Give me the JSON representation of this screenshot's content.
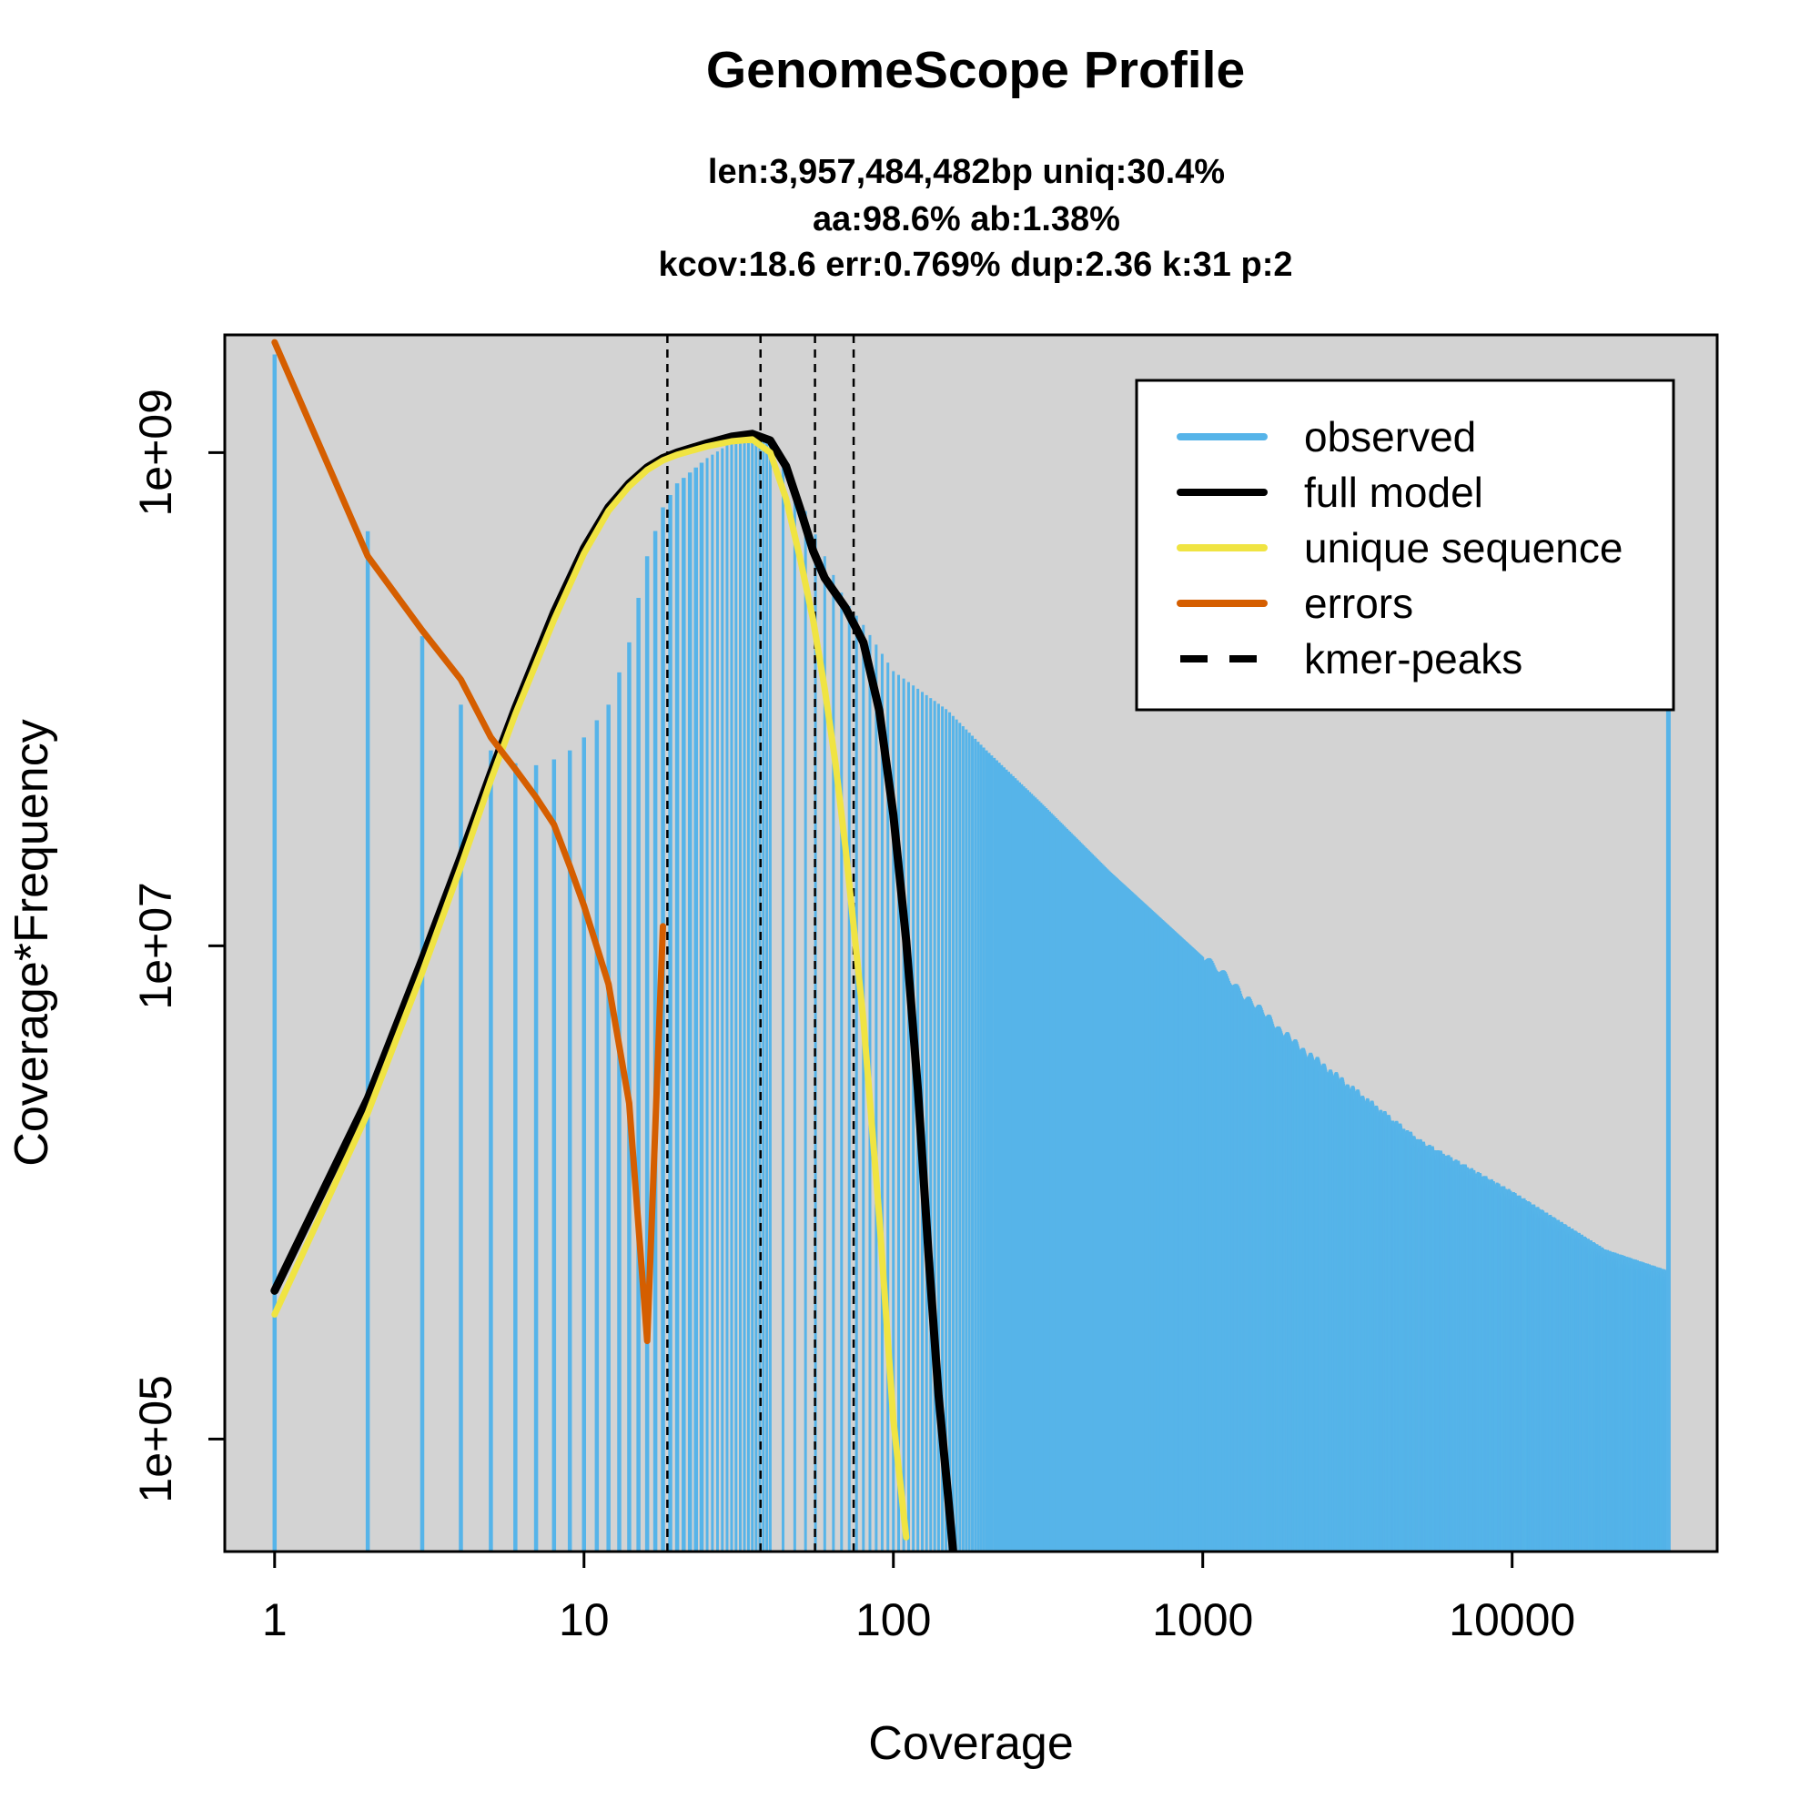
{
  "chart_data": {
    "type": "line",
    "title": "GenomeScope Profile",
    "subtitle_lines": [
      "len:3,957,484,482bp uniq:30.4%",
      "aa:98.6% ab:1.38%",
      "kcov:18.6 err:0.769%  dup:2.36  k:31 p:2"
    ],
    "xlabel": "Coverage",
    "ylabel": "Coverage*Frequency",
    "x_scale": "log",
    "y_scale": "log",
    "xlim": [
      0.69,
      46000
    ],
    "ylim": [
      35000,
      3000000000
    ],
    "x_ticks": [
      1,
      10,
      100,
      1000,
      10000
    ],
    "x_tick_labels": [
      "1",
      "10",
      "100",
      "1000",
      "10000"
    ],
    "y_ticks": [
      100000,
      10000000,
      1000000000
    ],
    "y_tick_labels": [
      "1e+05",
      "1e+07",
      "1e+09"
    ],
    "background": "#d3d3d3",
    "legend_position": "top-right",
    "kmer_peaks": [
      18.6,
      37.2,
      55.8,
      74.4
    ],
    "series": [
      {
        "name": "observed",
        "style": "histogram",
        "color": "#56b4e9",
        "x": [
          1,
          2,
          3,
          4,
          5,
          6,
          7,
          8,
          9,
          10,
          12,
          14,
          16,
          18,
          20,
          25,
          30,
          35,
          40,
          50,
          60,
          70,
          80,
          100,
          150,
          200,
          300,
          500,
          1000,
          2000,
          5000,
          10000,
          20000,
          32000,
          33000
        ],
        "y": [
          2500000000,
          480000000,
          180000000,
          95000000,
          62000000,
          55000000,
          54000000,
          57000000,
          62000000,
          70000000,
          95000000,
          170000000,
          380000000,
          600000000,
          750000000,
          950000000,
          1100000000,
          1150000000,
          1100000000,
          650000000,
          380000000,
          250000000,
          200000000,
          130000000,
          90000000,
          62000000,
          38000000,
          20000000,
          9000000,
          3900000,
          1550000,
          950000,
          550000,
          450000,
          550000000
        ]
      },
      {
        "name": "full model",
        "style": "line",
        "color": "#000000",
        "x": [
          1,
          2,
          3,
          4,
          5,
          6,
          8,
          10,
          12,
          14,
          16,
          18,
          20,
          25,
          30,
          35,
          40,
          45,
          50,
          55,
          60,
          70,
          80,
          90,
          100,
          110,
          120,
          130,
          140,
          150,
          156
        ],
        "y": [
          400000,
          2400000,
          8800000,
          23000000,
          50000000,
          92000000,
          225000000,
          410000000,
          600000000,
          750000000,
          870000000,
          950000000,
          1000000000,
          1090000000,
          1160000000,
          1190000000,
          1120000000,
          880000000,
          590000000,
          400000000,
          310000000,
          235000000,
          170000000,
          90000000,
          34000000,
          10500000,
          2600000,
          550000,
          150000,
          60000,
          35000
        ]
      },
      {
        "name": "unique sequence",
        "style": "line",
        "color": "#f0e442",
        "x": [
          1,
          2,
          3,
          4,
          5,
          6,
          8,
          10,
          12,
          14,
          16,
          18,
          20,
          25,
          30,
          35,
          40,
          45,
          50,
          55,
          60,
          65,
          70,
          80,
          90,
          100,
          110
        ],
        "y": [
          320000,
          2100000,
          7800000,
          21000000,
          47000000,
          87000000,
          210000000,
          390000000,
          580000000,
          730000000,
          850000000,
          930000000,
          980000000,
          1060000000,
          1110000000,
          1130000000,
          1000000000,
          650000000,
          370000000,
          210000000,
          110000000,
          55000000,
          25000000,
          5000000,
          800000,
          120000,
          40000
        ]
      },
      {
        "name": "errors",
        "style": "line",
        "color": "#d55e00",
        "x": [
          1,
          2,
          3,
          4,
          5,
          6,
          7,
          8,
          9,
          10,
          12,
          14,
          16,
          18
        ],
        "y": [
          2800000000,
          380000000,
          190000000,
          120000000,
          70000000,
          52000000,
          40000000,
          31000000,
          21000000,
          14500000,
          7000000,
          2300000,
          250000,
          12000000
        ]
      },
      {
        "name": "kmer-peaks",
        "style": "dashed",
        "color": "#000000",
        "x": [],
        "y": []
      }
    ]
  }
}
